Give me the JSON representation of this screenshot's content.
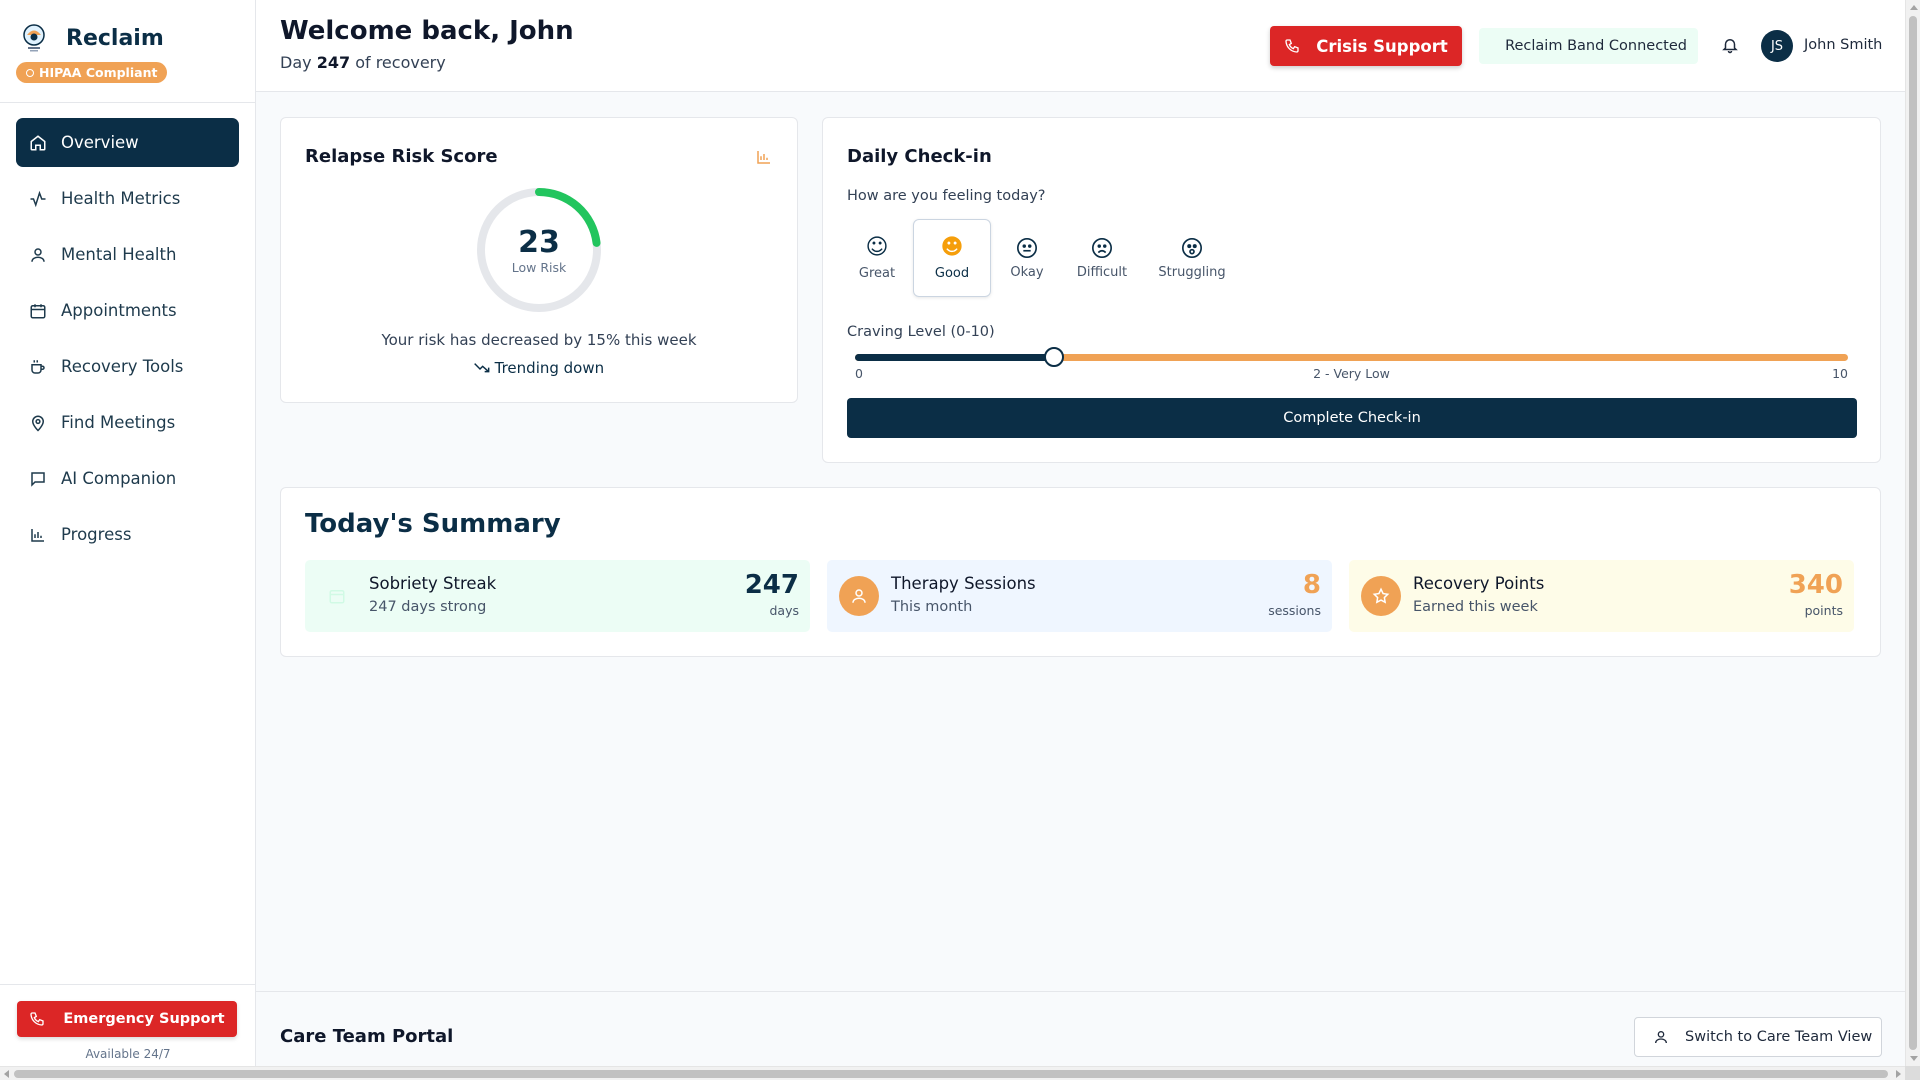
{
  "brand": {
    "name": "Reclaim",
    "badge": "HIPAA Compliant"
  },
  "nav": [
    {
      "label": "Overview",
      "icon": "home-icon",
      "active": true
    },
    {
      "label": "Health Metrics",
      "icon": "activity-icon"
    },
    {
      "label": "Mental Health",
      "icon": "user-icon"
    },
    {
      "label": "Appointments",
      "icon": "calendar-icon"
    },
    {
      "label": "Recovery Tools",
      "icon": "coffee-icon"
    },
    {
      "label": "Find Meetings",
      "icon": "map-pin-icon"
    },
    {
      "label": "AI Companion",
      "icon": "message-icon"
    },
    {
      "label": "Progress",
      "icon": "bar-chart-icon"
    }
  ],
  "sidebar_footer": {
    "emergency_label": "Emergency Support",
    "availability": "Available 24/7"
  },
  "header": {
    "welcome": "Welcome back, John",
    "day_prefix": "Day",
    "day_number": "247",
    "day_suffix": "of recovery",
    "crisis_label": "Crisis Support",
    "band_status": "Reclaim Band Connected",
    "avatar_initials": "JS",
    "user_name": "John Smith"
  },
  "risk": {
    "title": "Relapse Risk Score",
    "score": "23",
    "score_value": 23,
    "level": "Low Risk",
    "message": "Your risk has decreased by 15% this week",
    "trend": "Trending down",
    "accent": "#22c55e"
  },
  "checkin": {
    "title": "Daily Check-in",
    "question": "How are you feeling today?",
    "moods": [
      {
        "label": "Great",
        "emoji": "😊"
      },
      {
        "label": "Good",
        "emoji": "🙂",
        "selected": true
      },
      {
        "label": "Okay",
        "emoji": "😐"
      },
      {
        "label": "Difficult",
        "emoji": "😟"
      },
      {
        "label": "Struggling",
        "emoji": "😰"
      }
    ],
    "craving_label": "Craving Level (0-10)",
    "craving_value": 2,
    "craving_min": "0",
    "craving_max": "10",
    "craving_text": "2 - Very Low",
    "submit_label": "Complete Check-in"
  },
  "summary": {
    "title": "Today's Summary",
    "stats": [
      {
        "title": "Sobriety Streak",
        "subtitle": "247 days strong",
        "value": "247",
        "unit": "days",
        "bg": "#ecfdf5",
        "value_color": "#0b2e46",
        "icon": "calendar-icon"
      },
      {
        "title": "Therapy Sessions",
        "subtitle": "This month",
        "value": "8",
        "unit": "sessions",
        "bg": "#eff6ff",
        "value_color": "#f0a255",
        "icon": "user-icon"
      },
      {
        "title": "Recovery Points",
        "subtitle": "Earned this week",
        "value": "340",
        "unit": "points",
        "bg": "#fefce8",
        "value_color": "#f0a255",
        "icon": "star-icon"
      }
    ]
  },
  "footer": {
    "title": "Care Team Portal",
    "switch_label": "Switch to Care Team View"
  },
  "colors": {
    "primary": "#0b2e46",
    "danger": "#dc2626",
    "accent": "#f0a255",
    "success": "#22c55e"
  }
}
